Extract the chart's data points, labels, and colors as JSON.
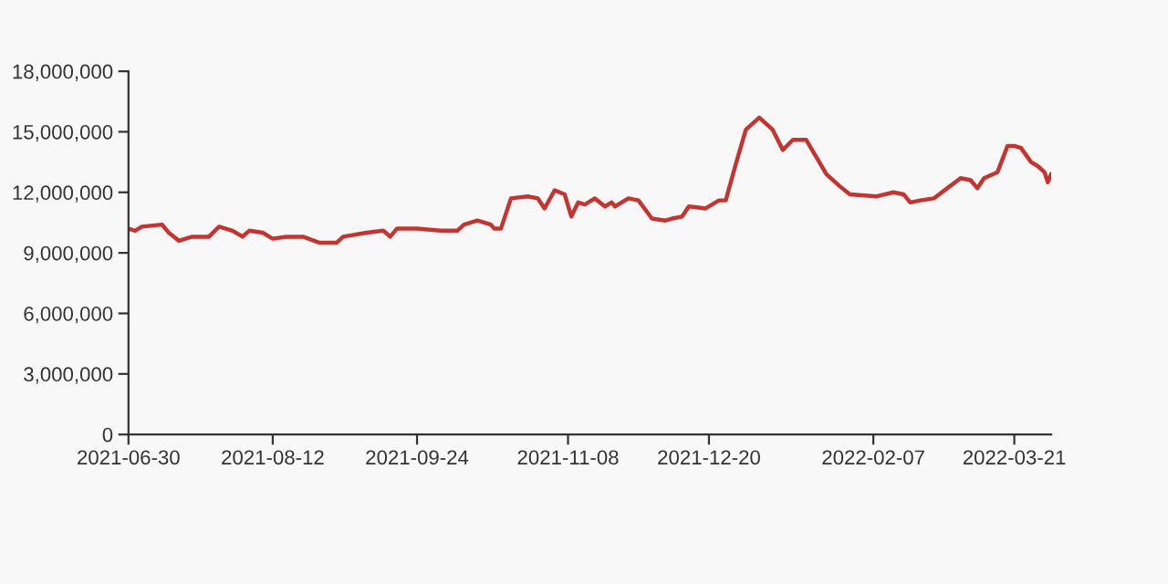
{
  "chart_data": {
    "type": "line",
    "x": [
      "2021-06-30",
      "2021-07-02",
      "2021-07-04",
      "2021-07-10",
      "2021-07-12",
      "2021-07-15",
      "2021-07-19",
      "2021-07-24",
      "2021-07-27",
      "2021-07-31",
      "2021-08-03",
      "2021-08-05",
      "2021-08-09",
      "2021-08-12",
      "2021-08-16",
      "2021-08-21",
      "2021-08-26",
      "2021-08-31",
      "2021-09-02",
      "2021-09-09",
      "2021-09-14",
      "2021-09-16",
      "2021-09-18",
      "2021-09-21",
      "2021-09-24",
      "2021-10-01",
      "2021-10-06",
      "2021-10-08",
      "2021-10-12",
      "2021-10-16",
      "2021-10-17",
      "2021-10-19",
      "2021-10-22",
      "2021-10-27",
      "2021-10-30",
      "2021-11-01",
      "2021-11-04",
      "2021-11-07",
      "2021-11-09",
      "2021-11-11",
      "2021-11-13",
      "2021-11-16",
      "2021-11-19",
      "2021-11-21",
      "2021-11-22",
      "2021-11-26",
      "2021-11-29",
      "2021-12-03",
      "2021-12-07",
      "2021-12-09",
      "2021-12-12",
      "2021-12-14",
      "2021-12-19",
      "2021-12-23",
      "2021-12-25",
      "2021-12-28",
      "2021-12-31",
      "2022-01-04",
      "2022-01-08",
      "2022-01-11",
      "2022-01-14",
      "2022-01-18",
      "2022-01-24",
      "2022-01-28",
      "2022-01-31",
      "2022-02-08",
      "2022-02-13",
      "2022-02-16",
      "2022-02-18",
      "2022-02-21",
      "2022-02-25",
      "2022-03-01",
      "2022-03-05",
      "2022-03-08",
      "2022-03-10",
      "2022-03-12",
      "2022-03-16",
      "2022-03-19",
      "2022-03-21",
      "2022-03-23",
      "2022-03-26",
      "2022-03-28",
      "2022-03-30",
      "2022-03-31",
      "2022-04-01"
    ],
    "series": [
      {
        "color": "#c23531",
        "values": [
          10200000,
          10100000,
          10300000,
          10400000,
          10000000,
          9600000,
          9800000,
          9800000,
          10300000,
          10100000,
          9800000,
          10100000,
          10000000,
          9700000,
          9800000,
          9800000,
          9500000,
          9500000,
          9800000,
          10000000,
          10100000,
          9800000,
          10200000,
          10200000,
          10200000,
          10100000,
          10100000,
          10400000,
          10600000,
          10400000,
          10200000,
          10200000,
          11700000,
          11800000,
          11700000,
          11200000,
          12100000,
          11900000,
          10800000,
          11500000,
          11400000,
          11700000,
          11300000,
          11500000,
          11300000,
          11700000,
          11600000,
          10700000,
          10600000,
          10700000,
          10800000,
          11300000,
          11200000,
          11600000,
          11600000,
          13400000,
          15100000,
          15700000,
          15100000,
          14100000,
          14600000,
          14600000,
          12900000,
          12300000,
          11900000,
          11800000,
          12000000,
          11900000,
          11500000,
          11600000,
          11700000,
          12200000,
          12700000,
          12600000,
          12200000,
          12700000,
          13000000,
          14300000,
          14300000,
          14200000,
          13500000,
          13300000,
          13000000,
          12500000,
          12900000
        ]
      }
    ],
    "xlim": [
      "2021-06-30",
      "2022-04-01"
    ],
    "xticks": [
      "2021-06-30",
      "2021-08-12",
      "2021-09-24",
      "2021-11-08",
      "2021-12-20",
      "2022-02-07",
      "2022-03-21"
    ],
    "ylim": [
      0,
      18000000
    ],
    "yticks": [
      {
        "value": 0,
        "label": "0"
      },
      {
        "value": 3000000,
        "label": "3,000,000"
      },
      {
        "value": 6000000,
        "label": "6,000,000"
      },
      {
        "value": 9000000,
        "label": "9,000,000"
      },
      {
        "value": 12000000,
        "label": "12,000,000"
      },
      {
        "value": 15000000,
        "label": "15,000,000"
      },
      {
        "value": 18000000,
        "label": "18,000,000"
      }
    ],
    "grid": false,
    "legend": false,
    "marker": "none",
    "line_style": "solid"
  }
}
